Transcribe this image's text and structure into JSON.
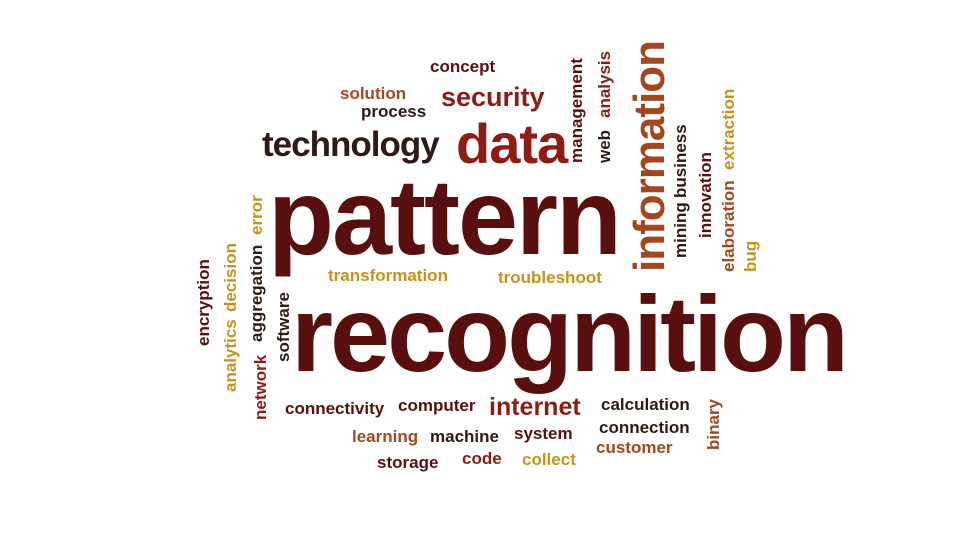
{
  "palette": {
    "dark_maroon": "#5a0f0f",
    "dark_brown": "#2e1a16",
    "red": "#8c1c15",
    "orange_brown": "#a2471e",
    "gold": "#c7911b",
    "background": "#ffffff"
  },
  "words": {
    "pattern": {
      "text": "pattern",
      "color": "#5a0f0f"
    },
    "recognition": {
      "text": "recognition",
      "color": "#5a0f0f"
    },
    "data": {
      "text": "data",
      "color": "#8c1c15"
    },
    "technology": {
      "text": "technology",
      "color": "#2e1a16"
    },
    "information": {
      "text": "information",
      "color": "#a2471e"
    },
    "security": {
      "text": "security",
      "color": "#8c1c15"
    },
    "solution": {
      "text": "solution",
      "color": "#a2471e"
    },
    "process": {
      "text": "process",
      "color": "#2e1a16"
    },
    "concept": {
      "text": "concept",
      "color": "#5a0f0f"
    },
    "management": {
      "text": "management",
      "color": "#5a0f0f"
    },
    "web": {
      "text": "web",
      "color": "#2e1a16"
    },
    "analysis": {
      "text": "analysis",
      "color": "#8c1c15"
    },
    "mining": {
      "text": "mining",
      "color": "#2e1a16"
    },
    "business": {
      "text": "business",
      "color": "#2e1a16"
    },
    "innovation": {
      "text": "innovation",
      "color": "#5a0f0f"
    },
    "elaboration": {
      "text": "elaboration",
      "color": "#a2471e"
    },
    "extraction": {
      "text": "extraction",
      "color": "#c7911b"
    },
    "bug": {
      "text": "bug",
      "color": "#c7911b"
    },
    "transformation": {
      "text": "transformation",
      "color": "#c7911b"
    },
    "troubleshoot": {
      "text": "troubleshoot",
      "color": "#c7911b"
    },
    "encryption": {
      "text": "encryption",
      "color": "#5a0f0f"
    },
    "analytics": {
      "text": "analytics",
      "color": "#c7911b"
    },
    "decision": {
      "text": "decision",
      "color": "#c7911b"
    },
    "network": {
      "text": "network",
      "color": "#8c1c15"
    },
    "aggregation": {
      "text": "aggregation",
      "color": "#2e1a16"
    },
    "error": {
      "text": "error",
      "color": "#c7911b"
    },
    "software": {
      "text": "software",
      "color": "#2e1a16"
    },
    "connectivity": {
      "text": "connectivity",
      "color": "#5a0f0f"
    },
    "computer": {
      "text": "computer",
      "color": "#5a0f0f"
    },
    "internet": {
      "text": "internet",
      "color": "#8c1c15"
    },
    "calculation": {
      "text": "calculation",
      "color": "#2e1a16"
    },
    "connection": {
      "text": "connection",
      "color": "#2e1a16"
    },
    "customer": {
      "text": "customer",
      "color": "#a2471e"
    },
    "binary": {
      "text": "binary",
      "color": "#a2471e"
    },
    "learning": {
      "text": "learning",
      "color": "#a2471e"
    },
    "machine": {
      "text": "machine",
      "color": "#2e1a16"
    },
    "system": {
      "text": "system",
      "color": "#5a0f0f"
    },
    "storage": {
      "text": "storage",
      "color": "#5a0f0f"
    },
    "code": {
      "text": "code",
      "color": "#8c1c15"
    },
    "collect": {
      "text": "collect",
      "color": "#c7911b"
    }
  }
}
